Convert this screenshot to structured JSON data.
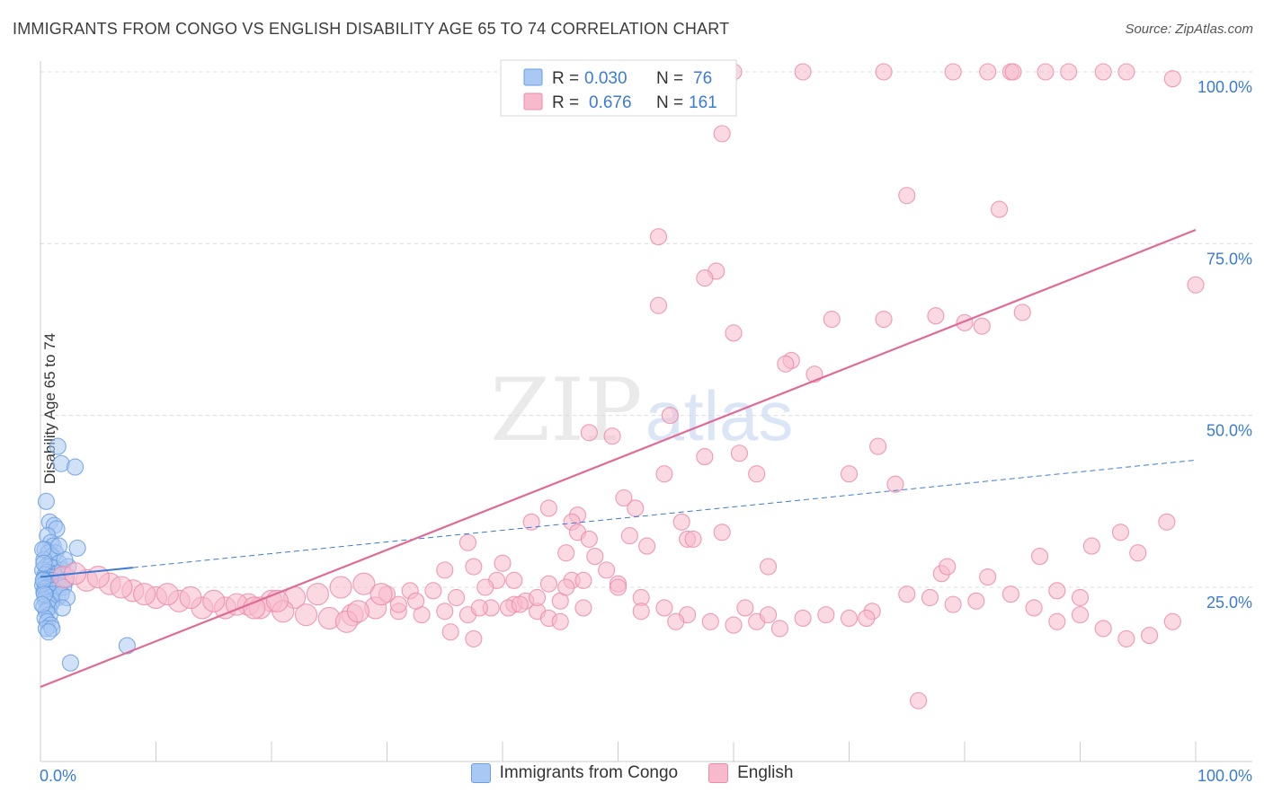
{
  "header": {
    "title": "IMMIGRANTS FROM CONGO VS ENGLISH DISABILITY AGE 65 TO 74 CORRELATION CHART",
    "source": "Source: ZipAtlas.com"
  },
  "watermark": {
    "zip": "ZIP",
    "atlas": "atlas"
  },
  "legend": {
    "rows": [
      {
        "r_label": "R = ",
        "r_value": "0.030",
        "n_label": "N = ",
        "n_value": "76",
        "color": "#a9c8f3",
        "stroke": "#6a9ee0"
      },
      {
        "r_label": "R = ",
        "r_value": "0.676",
        "n_label": "N = ",
        "n_value": "161",
        "color": "#f7b9cc",
        "stroke": "#ec8aa9"
      }
    ]
  },
  "chart_data": {
    "type": "scatter",
    "title": "IMMIGRANTS FROM CONGO VS ENGLISH DISABILITY AGE 65 TO 74 CORRELATION CHART",
    "xlabel": "",
    "ylabel": "Disability Age 65 to 74",
    "xlim": [
      0,
      100
    ],
    "ylim": [
      0,
      105
    ],
    "x_tick_labels": [
      "0.0%",
      "100.0%"
    ],
    "y_tick_labels": [
      "25.0%",
      "50.0%",
      "75.0%",
      "100.0%"
    ],
    "y_ticks": [
      25,
      50,
      75,
      100
    ],
    "grid": true,
    "legend_position": "top-center",
    "series": [
      {
        "name": "Immigrants from Congo",
        "color": "#6a9ee0",
        "fill": "#a9c8f3",
        "r": 0.03,
        "n": 76,
        "trend": {
          "x0": 0,
          "y0": 26.5,
          "x1": 100,
          "y1": 43.5,
          "solid_until": 8
        },
        "points": [
          [
            1.5,
            45.5
          ],
          [
            1.8,
            43
          ],
          [
            3,
            42.5
          ],
          [
            0.5,
            37.5
          ],
          [
            0.8,
            34.5
          ],
          [
            1.2,
            34
          ],
          [
            1.4,
            33.5
          ],
          [
            0.6,
            32.5
          ],
          [
            0.9,
            31.5
          ],
          [
            1.1,
            31
          ],
          [
            0.4,
            30.5
          ],
          [
            1.3,
            30
          ],
          [
            3.2,
            30.7
          ],
          [
            0.7,
            30
          ],
          [
            1,
            29.5
          ],
          [
            0.3,
            29
          ],
          [
            1.6,
            28.5
          ],
          [
            0.5,
            28
          ],
          [
            0.8,
            28
          ],
          [
            1.2,
            27.8
          ],
          [
            0.2,
            27.5
          ],
          [
            0.6,
            27.2
          ],
          [
            1,
            27
          ],
          [
            1.5,
            27
          ],
          [
            0.4,
            26.8
          ],
          [
            0.9,
            26.5
          ],
          [
            1.3,
            26.5
          ],
          [
            0.3,
            26.2
          ],
          [
            0.7,
            26
          ],
          [
            1.1,
            26
          ],
          [
            0.5,
            25.8
          ],
          [
            0.8,
            25.5
          ],
          [
            1.4,
            25.5
          ],
          [
            0.2,
            25.3
          ],
          [
            0.6,
            25
          ],
          [
            1,
            25
          ],
          [
            1.7,
            25.2
          ],
          [
            0.4,
            24.8
          ],
          [
            0.9,
            24.5
          ],
          [
            1.2,
            24.6
          ],
          [
            0.3,
            24.3
          ],
          [
            0.7,
            24
          ],
          [
            1.1,
            24
          ],
          [
            0.5,
            23.8
          ],
          [
            0.8,
            23.5
          ],
          [
            1.5,
            23.5
          ],
          [
            0.4,
            23.2
          ],
          [
            1,
            23
          ],
          [
            0.6,
            22.8
          ],
          [
            0.9,
            22.5
          ],
          [
            0.3,
            22.2
          ],
          [
            0.7,
            22
          ],
          [
            0.5,
            21.5
          ],
          [
            0.8,
            21
          ],
          [
            0.4,
            20.5
          ],
          [
            0.6,
            20
          ],
          [
            0.9,
            19.5
          ],
          [
            0.5,
            19
          ],
          [
            1,
            19
          ],
          [
            0.7,
            18.5
          ],
          [
            7.5,
            16.5
          ],
          [
            2.6,
            14
          ],
          [
            1.9,
            27.5
          ],
          [
            2.2,
            26
          ],
          [
            2.0,
            25
          ],
          [
            1.8,
            24
          ],
          [
            2.4,
            28
          ],
          [
            2.1,
            29
          ],
          [
            1.6,
            31
          ],
          [
            2.3,
            23.5
          ],
          [
            0.2,
            30.5
          ],
          [
            0.3,
            28.5
          ],
          [
            0.25,
            26
          ],
          [
            0.35,
            24
          ],
          [
            0.15,
            22.5
          ],
          [
            1.9,
            22
          ]
        ]
      },
      {
        "name": "English",
        "color": "#ec8aa9",
        "fill": "#f7b9cc",
        "r": 0.676,
        "n": 161,
        "trend": {
          "x0": 0,
          "y0": 10.5,
          "x1": 100,
          "y1": 77
        },
        "points": [
          [
            53,
            100
          ],
          [
            57,
            100
          ],
          [
            57.5,
            100
          ],
          [
            60,
            100
          ],
          [
            66,
            100
          ],
          [
            73,
            100
          ],
          [
            79,
            100
          ],
          [
            82,
            100
          ],
          [
            84,
            100
          ],
          [
            84.2,
            100
          ],
          [
            87,
            100
          ],
          [
            89,
            100
          ],
          [
            92,
            100
          ],
          [
            94,
            100
          ],
          [
            98,
            99
          ],
          [
            59,
            91
          ],
          [
            75,
            82
          ],
          [
            83,
            80
          ],
          [
            53.5,
            76
          ],
          [
            58.5,
            71
          ],
          [
            57.5,
            70
          ],
          [
            100,
            69
          ],
          [
            53.5,
            66
          ],
          [
            77.5,
            64.5
          ],
          [
            68.5,
            64
          ],
          [
            73,
            64
          ],
          [
            80,
            63.5
          ],
          [
            81.5,
            63
          ],
          [
            85,
            65
          ],
          [
            60,
            62
          ],
          [
            65,
            58
          ],
          [
            64.5,
            57.5
          ],
          [
            67,
            56
          ],
          [
            54.5,
            50
          ],
          [
            47.5,
            47.5
          ],
          [
            49.5,
            47
          ],
          [
            72.5,
            45.5
          ],
          [
            60.5,
            44.5
          ],
          [
            57.5,
            44
          ],
          [
            54,
            41.5
          ],
          [
            62,
            41.5
          ],
          [
            70,
            41.5
          ],
          [
            74,
            40
          ],
          [
            50.5,
            38
          ],
          [
            51.5,
            36.5
          ],
          [
            44,
            36.5
          ],
          [
            46.5,
            35.5
          ],
          [
            42.5,
            34.5
          ],
          [
            46,
            34.5
          ],
          [
            55.5,
            34.5
          ],
          [
            59,
            33
          ],
          [
            46.5,
            33
          ],
          [
            51,
            32.5
          ],
          [
            47.5,
            32
          ],
          [
            37,
            31.5
          ],
          [
            56,
            32
          ],
          [
            56.5,
            32
          ],
          [
            45.5,
            30
          ],
          [
            52.5,
            31
          ],
          [
            48,
            29.5
          ],
          [
            40,
            28.5
          ],
          [
            37.5,
            28
          ],
          [
            35,
            27.5
          ],
          [
            63,
            28
          ],
          [
            49,
            27.5
          ],
          [
            78,
            27
          ],
          [
            39.5,
            26
          ],
          [
            41,
            26
          ],
          [
            44,
            25.5
          ],
          [
            46,
            26
          ],
          [
            50,
            25.5
          ],
          [
            38.5,
            25
          ],
          [
            34,
            24.5
          ],
          [
            32,
            24.5
          ],
          [
            30,
            24
          ],
          [
            26,
            25
          ],
          [
            28,
            25.5
          ],
          [
            24,
            24
          ],
          [
            22,
            23.5
          ],
          [
            20,
            23
          ],
          [
            18,
            22.5
          ],
          [
            16,
            22
          ],
          [
            14,
            22
          ],
          [
            12,
            23
          ],
          [
            10,
            23.5
          ],
          [
            8,
            24.5
          ],
          [
            6,
            25.5
          ],
          [
            4,
            26
          ],
          [
            2,
            26.5
          ],
          [
            3,
            27
          ],
          [
            5,
            26.5
          ],
          [
            7,
            25
          ],
          [
            9,
            24
          ],
          [
            11,
            24
          ],
          [
            13,
            23.5
          ],
          [
            15,
            23
          ],
          [
            17,
            22.5
          ],
          [
            19,
            22
          ],
          [
            21,
            21.5
          ],
          [
            23,
            21
          ],
          [
            25,
            20.5
          ],
          [
            27,
            21
          ],
          [
            29,
            22
          ],
          [
            31,
            21.5
          ],
          [
            33,
            21
          ],
          [
            35,
            21.5
          ],
          [
            37,
            21
          ],
          [
            39,
            22
          ],
          [
            41,
            22.5
          ],
          [
            43,
            21.5
          ],
          [
            45,
            23
          ],
          [
            36,
            23.5
          ],
          [
            38,
            22
          ],
          [
            42,
            23
          ],
          [
            45.5,
            25
          ],
          [
            47,
            26
          ],
          [
            50,
            25
          ],
          [
            52,
            23.5
          ],
          [
            54,
            22
          ],
          [
            56,
            21
          ],
          [
            58,
            20
          ],
          [
            60,
            19.5
          ],
          [
            62,
            20
          ],
          [
            64,
            19
          ],
          [
            66,
            20.5
          ],
          [
            68,
            21
          ],
          [
            70,
            20.5
          ],
          [
            72,
            21.5
          ],
          [
            75,
            24
          ],
          [
            77,
            23.5
          ],
          [
            79,
            22.5
          ],
          [
            81,
            23
          ],
          [
            84,
            24
          ],
          [
            86,
            22
          ],
          [
            88,
            20
          ],
          [
            90,
            21
          ],
          [
            92,
            19
          ],
          [
            94,
            17.5
          ],
          [
            96,
            18
          ],
          [
            98,
            20
          ],
          [
            76,
            8.5
          ],
          [
            90,
            23.5
          ],
          [
            88,
            24.5
          ],
          [
            82,
            26.5
          ],
          [
            78.5,
            28
          ],
          [
            86.5,
            29.5
          ],
          [
            91,
            31
          ],
          [
            93.5,
            33
          ],
          [
            95,
            30
          ],
          [
            97.5,
            34.5
          ],
          [
            35.5,
            18.5
          ],
          [
            37.5,
            17.5
          ],
          [
            44,
            20.5
          ],
          [
            45,
            20
          ],
          [
            47,
            22
          ],
          [
            52,
            21.5
          ],
          [
            55,
            20
          ],
          [
            61,
            22
          ],
          [
            63,
            21
          ],
          [
            71.5,
            20.5
          ],
          [
            40.5,
            22
          ],
          [
            41.5,
            22.5
          ],
          [
            43,
            23.5
          ],
          [
            29.5,
            24
          ],
          [
            31,
            22.5
          ],
          [
            32.5,
            23
          ],
          [
            26.5,
            20
          ],
          [
            27.5,
            21.5
          ],
          [
            18.5,
            22
          ],
          [
            20.5,
            23
          ]
        ]
      }
    ]
  },
  "bottom_legend": [
    {
      "label": "Immigrants from Congo",
      "fill": "#a9c8f3",
      "stroke": "#6a9ee0"
    },
    {
      "label": "English",
      "fill": "#f7b9cc",
      "stroke": "#ec8aa9"
    }
  ]
}
